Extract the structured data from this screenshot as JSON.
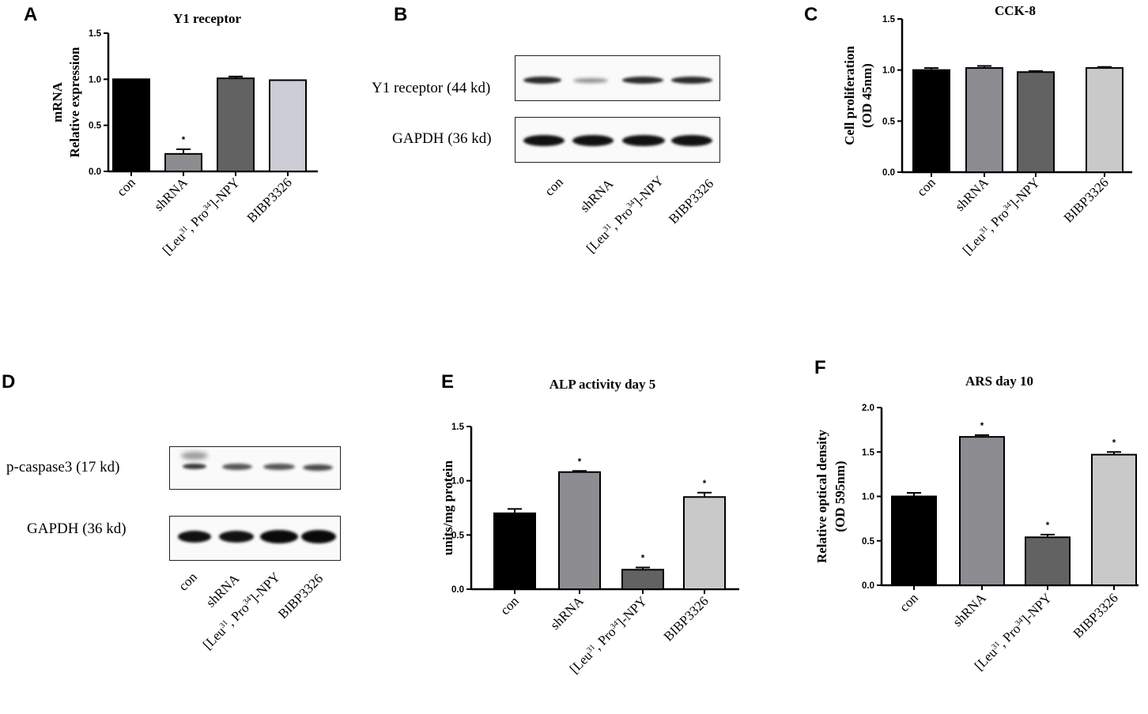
{
  "panels": {
    "A": "A",
    "B": "B",
    "C": "C",
    "D": "D",
    "E": "E",
    "F": "F"
  },
  "categories": [
    "con",
    "shRNA",
    "[Leu31, Pro34]-NPY",
    "BIBP3326"
  ],
  "colors": {
    "con": "#000000",
    "shRNA": "#8c8c91",
    "npy": "#626262",
    "bibp_a": "#cdcdd6",
    "bibp": "#c9c9c9"
  },
  "chart_data": [
    {
      "id": "A",
      "type": "bar",
      "title": "Y1 receptor",
      "ylabel_lines": [
        "mRNA",
        "Relative expression"
      ],
      "categories": [
        "con",
        "shRNA",
        "[Leu31, Pro34]-NPY",
        "BIBP3326"
      ],
      "values": [
        1.0,
        0.19,
        1.01,
        0.99
      ],
      "errors": [
        0.0,
        0.05,
        0.02,
        0.0
      ],
      "significant": [
        false,
        true,
        false,
        false
      ],
      "ylim": [
        0,
        1.5
      ],
      "yticks": [
        "0.0",
        "0.5",
        "1.0",
        "1.5"
      ]
    },
    {
      "id": "C",
      "type": "bar",
      "title": "CCK-8",
      "ylabel_lines": [
        "Cell proliferation",
        "(OD 45nm)"
      ],
      "categories": [
        "con",
        "shRNA",
        "[Leu31, Pro34]-NPY",
        "BIBP3326"
      ],
      "values": [
        1.0,
        1.02,
        0.98,
        1.02
      ],
      "errors": [
        0.02,
        0.02,
        0.01,
        0.01
      ],
      "significant": [
        false,
        false,
        false,
        false
      ],
      "ylim": [
        0,
        1.5
      ],
      "yticks": [
        "0.0",
        "0.5",
        "1.0",
        "1.5"
      ]
    },
    {
      "id": "E",
      "type": "bar",
      "title": "ALP activity day 5",
      "ylabel_lines": [
        "units/mg protein"
      ],
      "categories": [
        "con",
        "shRNA",
        "[Leu31, Pro34]-NPY",
        "BIBP3326"
      ],
      "values": [
        0.7,
        1.08,
        0.18,
        0.85
      ],
      "errors": [
        0.04,
        0.01,
        0.02,
        0.04
      ],
      "significant": [
        false,
        true,
        true,
        true
      ],
      "ylim": [
        0,
        1.5
      ],
      "yticks": [
        "0.0",
        "0.5",
        "1.0",
        "1.5"
      ]
    },
    {
      "id": "F",
      "type": "bar",
      "title": "ARS day 10",
      "ylabel_lines": [
        "Relative optical density",
        "(OD 595nm)"
      ],
      "categories": [
        "con",
        "shRNA",
        "[Leu31, Pro34]-NPY",
        "BIBP3326"
      ],
      "values": [
        1.0,
        1.67,
        0.54,
        1.47
      ],
      "errors": [
        0.04,
        0.02,
        0.03,
        0.03
      ],
      "significant": [
        false,
        true,
        true,
        true
      ],
      "ylim": [
        0,
        2.0
      ],
      "yticks": [
        "0.0",
        "0.5",
        "1.0",
        "1.5",
        "2.0"
      ]
    }
  ],
  "blots": {
    "B": {
      "rows": [
        "Y1 receptor (44 kd)",
        "GAPDH (36 kd)"
      ],
      "lanes": [
        "con",
        "shRNA",
        "[Leu31, Pro34]-NPY",
        "BIBP3326"
      ]
    },
    "D": {
      "rows": [
        "p-caspase3 (17 kd)",
        "GAPDH (36 kd)"
      ],
      "lanes": [
        "con",
        "shRNA",
        "[Leu31, Pro34]-NPY",
        "BIBP3326"
      ]
    }
  },
  "labels": {
    "leu": "[Leu",
    "sup31": "31",
    "pro": ", Pro",
    "sup34": "34",
    "npy": "]-NPY",
    "star": "*"
  }
}
